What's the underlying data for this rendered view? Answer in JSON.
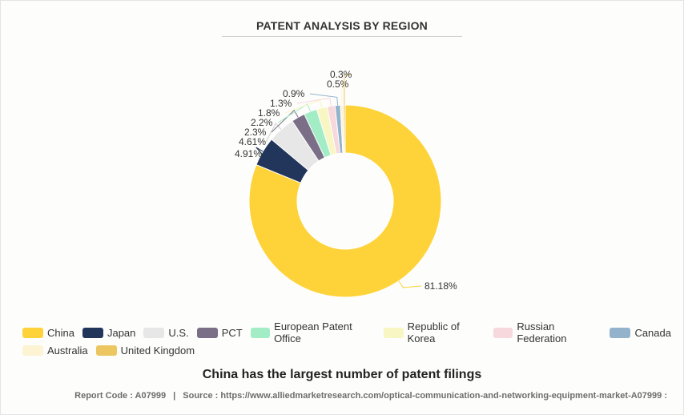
{
  "chart_data": {
    "type": "pie",
    "title": "PATENT ANALYSIS BY REGION",
    "categories": [
      "China",
      "Japan",
      "U.S.",
      "PCT",
      "European Patent Office",
      "Republic of Korea",
      "Russian Federation",
      "Canada",
      "Australia",
      "United Kingdom"
    ],
    "values": [
      81.18,
      4.91,
      4.61,
      2.3,
      2.2,
      1.8,
      1.3,
      0.9,
      0.5,
      0.3
    ],
    "labels": [
      "81.18%",
      "4.91%",
      "4.61%",
      "2.3%",
      "2.2%",
      "1.8%",
      "1.3%",
      "0.9%",
      "0.5%",
      "0.3%"
    ],
    "colors": [
      "#fed33a",
      "#22355a",
      "#e7e7e7",
      "#7b6e87",
      "#a2ecc6",
      "#f8f6c2",
      "#f7d8dc",
      "#93b3cc",
      "#fdf4d3",
      "#ecc761"
    ],
    "donut": true,
    "legend_position": "bottom"
  },
  "subtitle": "China has the largest number of patent filings",
  "footer": {
    "report_code": "Report Code : A07999",
    "separator": "|",
    "source": "Source : https://www.alliedmarketresearch.com/optical-communication-and-networking-equipment-market-A07999 :"
  }
}
